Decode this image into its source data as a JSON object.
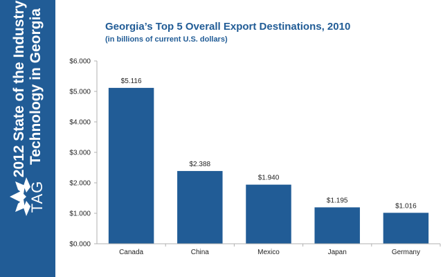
{
  "sidebar": {
    "title_line1": "2012 State of the Industry:",
    "title_line2": "Technology in Georgia",
    "logo_text": "TAG"
  },
  "colors": {
    "sidebar_bg": "#215c96",
    "bar": "#215c96",
    "title": "#215c96"
  },
  "chart_data": {
    "type": "bar",
    "title": "Georgia’s Top 5 Overall Export Destinations, 2010",
    "subtitle": "(in billions of current U.S. dollars)",
    "categories": [
      "Canada",
      "China",
      "Mexico",
      "Japan",
      "Germany"
    ],
    "values": [
      5.116,
      2.388,
      1.94,
      1.195,
      1.016
    ],
    "data_labels": [
      "$5.116",
      "$2.388",
      "$1.940",
      "$1.195",
      "$1.016"
    ],
    "y_ticks": [
      0,
      1,
      2,
      3,
      4,
      5,
      6
    ],
    "y_tick_labels": [
      "$0.000",
      "$1.000",
      "$2.000",
      "$3.000",
      "$4.000",
      "$5.000",
      "$6.000"
    ],
    "ylim": [
      0,
      6
    ],
    "grid": false,
    "legend": "none"
  }
}
